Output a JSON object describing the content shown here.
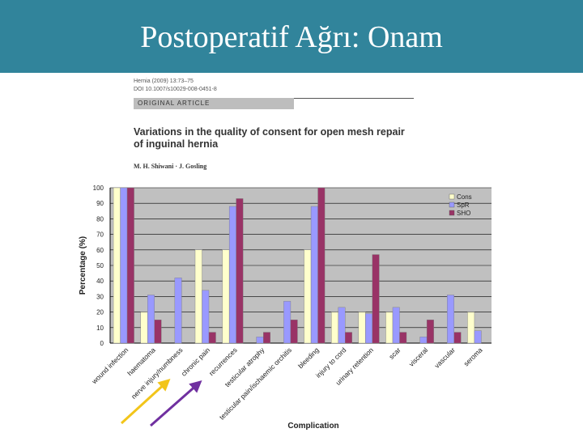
{
  "slide": {
    "title": "Postoperatif Ağrı: Onam",
    "banner_color": "#31849b"
  },
  "paper": {
    "journal": "Hernia (2009) 13:73–75",
    "doi": "DOI 10.1007/s10029-008-0451-8",
    "article_type": "ORIGINAL ARTICLE",
    "title_line1": "Variations in the quality of consent for open mesh repair",
    "title_line2": "of inguinal hernia",
    "authors": "M. H. Shiwani · J. Gosling"
  },
  "chart_data": {
    "type": "bar",
    "xlabel": "Complication",
    "ylabel": "Percentage (%)",
    "ylim": [
      0,
      100
    ],
    "yticks": [
      0,
      10,
      20,
      30,
      40,
      50,
      60,
      70,
      80,
      90,
      100
    ],
    "grid": true,
    "legend_position": "top-right",
    "categories": [
      "wound infection",
      "haematoma",
      "nerve injury/numbness",
      "chronic pain",
      "recurrences",
      "testicular atrophy",
      "testicular pain/ischaemic orchitis",
      "bleeding",
      "injury to cord",
      "urinary retention",
      "scar",
      "visceral",
      "vascular",
      "seroma"
    ],
    "series": [
      {
        "name": "Cons",
        "color": "#ffffcc",
        "values": [
          100,
          20,
          0,
          60,
          60,
          0,
          0,
          60,
          20,
          20,
          20,
          0,
          0,
          20
        ]
      },
      {
        "name": "SpR",
        "color": "#9999ff",
        "values": [
          100,
          31,
          42,
          34,
          88,
          4,
          27,
          88,
          23,
          19,
          23,
          4,
          31,
          8
        ]
      },
      {
        "name": "SHO",
        "color": "#993366",
        "values": [
          100,
          15,
          0,
          7,
          93,
          7,
          15,
          100,
          7,
          57,
          7,
          15,
          7,
          0
        ]
      }
    ],
    "annotation_arrows": [
      {
        "points_to": "nerve injury/numbness",
        "color": "#f2c51a"
      },
      {
        "points_to": "chronic pain",
        "color": "#7030a0"
      }
    ]
  }
}
